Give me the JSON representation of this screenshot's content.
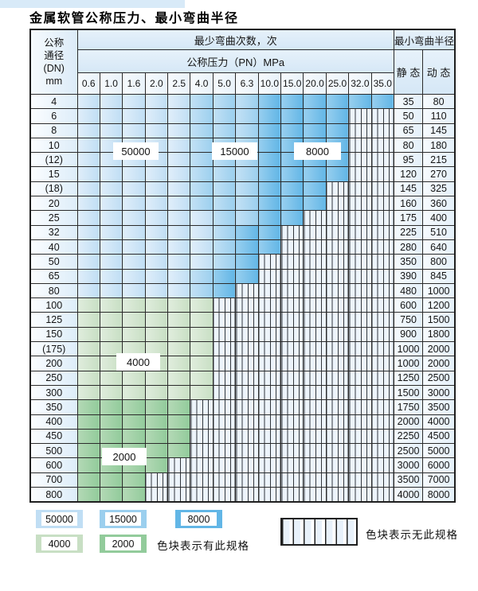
{
  "title": "金属软管公称压力、最小弯曲半径",
  "colors": {
    "blue_50000": "#c0def4",
    "blue_15000": "#9bcfee",
    "blue_8000": "#62b6e6",
    "green_4000": "#c8dfc4",
    "green_2000": "#92cb9b",
    "stripe_bg": "#edf4fb",
    "grid_line": "#2b2b2b"
  },
  "table": {
    "dn_header_lines": [
      "公称",
      "通径",
      "(DN)",
      "mm"
    ],
    "cycles_header": "最少弯曲次数，次",
    "pressure_header": "公称压力（PN）MPa",
    "radius_header": "最小弯曲半径",
    "static_label": "静 态",
    "dynamic_label": "动 态",
    "pressures": [
      "0.6",
      "1.0",
      "1.6",
      "2.0",
      "2.5",
      "4.0",
      "5.0",
      "6.3",
      "10.0",
      "15.0",
      "20.0",
      "25.0",
      "32.0",
      "35.0"
    ],
    "rows": [
      {
        "dn": "4",
        "cells": "LLLLLMMMDDDDDD",
        "static": "35",
        "dynamic": "80"
      },
      {
        "dn": "6",
        "cells": "LLLLLMMMDDDDxx",
        "static": "50",
        "dynamic": "110"
      },
      {
        "dn": "8",
        "cells": "LLLLLMMMDDDDxx",
        "static": "65",
        "dynamic": "145"
      },
      {
        "dn": "10",
        "cells": "LLLLLMMMDDDDxx",
        "static": "80",
        "dynamic": "180"
      },
      {
        "dn": "(12)",
        "cells": "LLLLLMMMDDDDxx",
        "static": "95",
        "dynamic": "215"
      },
      {
        "dn": "15",
        "cells": "LLLLLMMMDDDDxx",
        "static": "120",
        "dynamic": "270"
      },
      {
        "dn": "(18)",
        "cells": "LLLLLMMMDDDxxx",
        "static": "145",
        "dynamic": "325"
      },
      {
        "dn": "20",
        "cells": "LLLLLMMMDDDxxx",
        "static": "160",
        "dynamic": "360"
      },
      {
        "dn": "25",
        "cells": "LLLLLLMMDDxxxx",
        "static": "175",
        "dynamic": "400"
      },
      {
        "dn": "32",
        "cells": "LLLLLLMDDxxxxx",
        "static": "225",
        "dynamic": "510"
      },
      {
        "dn": "40",
        "cells": "LLLLLLMDDxxxxx",
        "static": "280",
        "dynamic": "640"
      },
      {
        "dn": "50",
        "cells": "LLLLLLMDxxxxxx",
        "static": "350",
        "dynamic": "800"
      },
      {
        "dn": "65",
        "cells": "LLLLLMDDxxxxxx",
        "static": "390",
        "dynamic": "845"
      },
      {
        "dn": "80",
        "cells": "LLLLLMDxxxxxxx",
        "static": "480",
        "dynamic": "1000"
      },
      {
        "dn": "100",
        "cells": "ggggggxxxxxxxx",
        "static": "600",
        "dynamic": "1200"
      },
      {
        "dn": "125",
        "cells": "ggggggxxxxxxxx",
        "static": "750",
        "dynamic": "1500"
      },
      {
        "dn": "150",
        "cells": "ggggggxxxxxxxx",
        "static": "900",
        "dynamic": "1800"
      },
      {
        "dn": "(175)",
        "cells": "ggggggxxxxxxxx",
        "static": "1000",
        "dynamic": "2000"
      },
      {
        "dn": "200",
        "cells": "ggggggxxxxxxxx",
        "static": "1000",
        "dynamic": "2000"
      },
      {
        "dn": "250",
        "cells": "ggggggxxxxxxxx",
        "static": "1250",
        "dynamic": "2500"
      },
      {
        "dn": "300",
        "cells": "ggggggxxxxxxxx",
        "static": "1500",
        "dynamic": "3000"
      },
      {
        "dn": "350",
        "cells": "GGGGGxxxxxxxxx",
        "static": "1750",
        "dynamic": "3500"
      },
      {
        "dn": "400",
        "cells": "GGGGGxxxxxxxxx",
        "static": "2000",
        "dynamic": "4000"
      },
      {
        "dn": "450",
        "cells": "GGGGGxxxxxxxxx",
        "static": "2250",
        "dynamic": "4500"
      },
      {
        "dn": "500",
        "cells": "GGGGGxxxxxxxxx",
        "static": "2500",
        "dynamic": "5000"
      },
      {
        "dn": "600",
        "cells": "GGGGxxxxxxxxxx",
        "static": "3000",
        "dynamic": "6000"
      },
      {
        "dn": "700",
        "cells": "GGGxxxxxxxxxxx",
        "static": "3500",
        "dynamic": "7000"
      },
      {
        "dn": "800",
        "cells": "GGGxxxxxxxxxxx",
        "static": "4000",
        "dynamic": "8000"
      }
    ],
    "region_labels": [
      "50000",
      "15000",
      "8000",
      "4000",
      "2000"
    ]
  },
  "legend": {
    "items": [
      {
        "label": "50000",
        "color_key": "blue_50000"
      },
      {
        "label": "15000",
        "color_key": "blue_15000"
      },
      {
        "label": "8000",
        "color_key": "blue_8000"
      },
      {
        "label": "4000",
        "color_key": "green_4000"
      },
      {
        "label": "2000",
        "color_key": "green_2000"
      }
    ],
    "has_spec_text": "色块表示有此规格",
    "no_spec_text": "色块表示无此规格"
  }
}
